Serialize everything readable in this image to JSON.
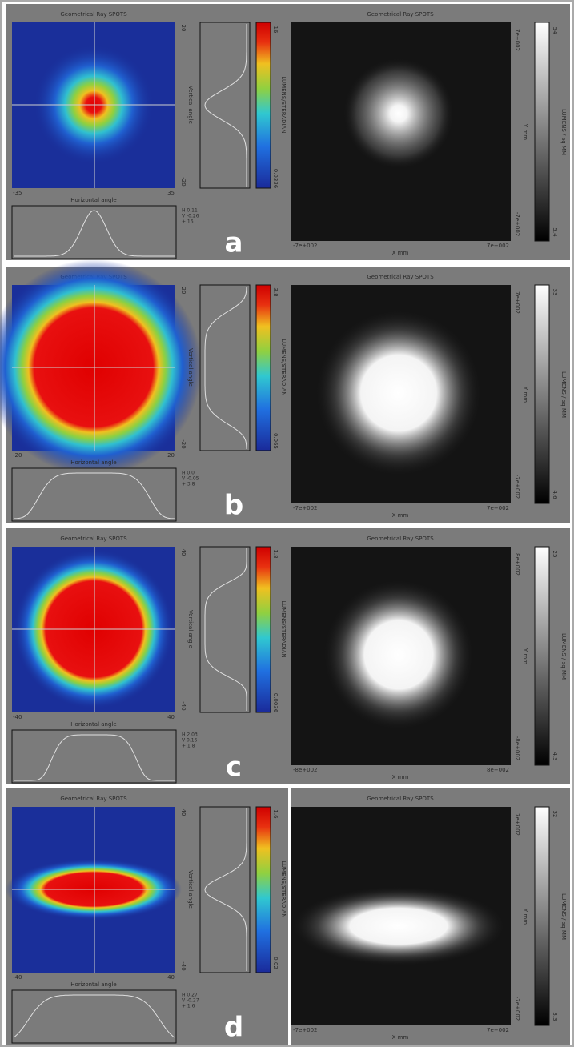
{
  "panels": [
    {
      "letter": "a",
      "heatmap_title": "Geometrical Ray SPOTS",
      "x_min": "-35",
      "x_max": "35",
      "y_max": "20",
      "y_min": "-20",
      "vertical_label": "Vertical angle",
      "horizontal_label": "Horizontal angle",
      "legend": [
        "H 0.11",
        "V -0.26",
        "+ 16"
      ],
      "colorbar_max": "16",
      "colorbar_min": "0.0336",
      "colorbar_label": "LUMENS/STERADIAN",
      "image_title": "Geometrical Ray SPOTS",
      "image_y_max": "7e+002",
      "image_y_min": "-7e+002",
      "image_y_label": "Y mm",
      "image_x_min": "-7e+002",
      "image_x_max": "7e+002",
      "image_x_label": "X mm",
      "gray_max": ".54",
      "gray_min": "5.4",
      "gray_label": "LUMENS / sq MM"
    },
    {
      "letter": "b",
      "heatmap_title": "Geometrical Ray SPOTS",
      "x_min": "-20",
      "x_max": "20",
      "y_max": "20",
      "y_min": "-20",
      "vertical_label": "Vertical angle",
      "horizontal_label": "Horizontal angle",
      "legend": [
        "H 0.0",
        "V -0.05",
        "+ 3.8"
      ],
      "colorbar_max": "3.8",
      "colorbar_min": "0.065",
      "colorbar_label": "LUMENS/STERADIAN",
      "image_title": "Geometrical Ray SPOTS",
      "image_y_max": "7e+002",
      "image_y_min": "-7e+002",
      "image_y_label": "Y mm",
      "image_x_min": "-7e+002",
      "image_x_max": "7e+002",
      "image_x_label": "X mm",
      "gray_max": "33",
      "gray_min": "4.6",
      "gray_label": "LUMENS / sq MM"
    },
    {
      "letter": "c",
      "heatmap_title": "Geometrical Ray SPOTS",
      "x_min": "-40",
      "x_max": "40",
      "y_max": "40",
      "y_min": "-40",
      "vertical_label": "Vertical angle",
      "horizontal_label": "Horizontal angle",
      "legend": [
        "H 2.03",
        "V 0.16",
        "+ 1.8"
      ],
      "colorbar_max": "1.8",
      "colorbar_min": "0.0036",
      "colorbar_label": "LUMENS/STERADIAN",
      "image_title": "Geometrical Ray SPOTS",
      "image_y_max": "8e+002",
      "image_y_min": "-8e+002",
      "image_y_label": "Y mm",
      "image_x_min": "-8e+002",
      "image_x_max": "8e+002",
      "image_x_label": "X mm",
      "gray_max": "25",
      "gray_min": "4.3",
      "gray_label": "LUMENS / sq MM"
    },
    {
      "letter": "d",
      "heatmap_title": "Geometrical Ray SPOTS",
      "x_min": "-40",
      "x_max": "40",
      "y_max": "40",
      "y_min": "-40",
      "vertical_label": "Vertical angle",
      "horizontal_label": "Horizontal angle",
      "legend": [
        "H 0.27",
        "V -0.27",
        "+ 1.6"
      ],
      "colorbar_max": "1.6",
      "colorbar_min": "0.02",
      "colorbar_label": "LUMENS/STERADIAN",
      "image_title": "Geometrical Ray SPOTS",
      "image_y_max": "7e+002",
      "image_y_min": "-7e+002",
      "image_y_label": "Y mm",
      "image_x_min": "-7e+002",
      "image_x_max": "7e+002",
      "image_x_label": "X mm",
      "gray_max": "32",
      "gray_min": "3.3",
      "gray_label": "LUMENS / sq MM"
    }
  ]
}
